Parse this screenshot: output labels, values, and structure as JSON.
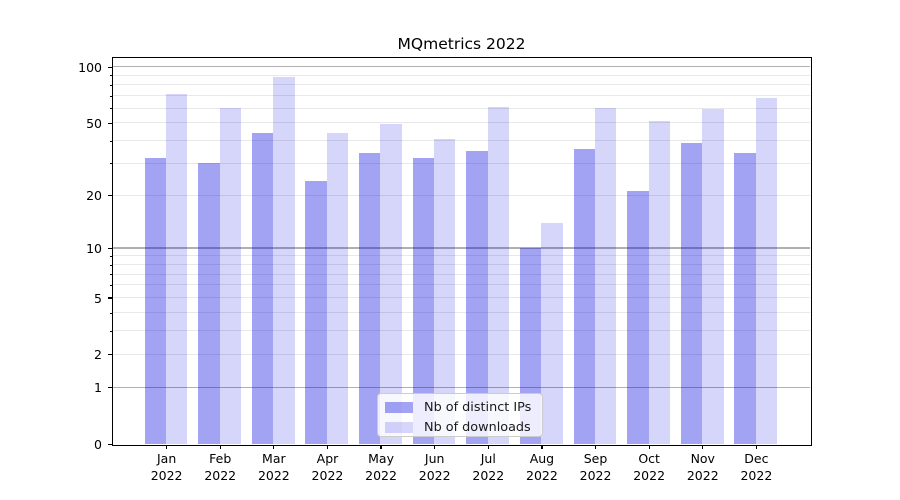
{
  "title": "MQmetrics 2022",
  "chart_data": {
    "type": "bar",
    "title": "MQmetrics 2022",
    "categories": [
      "Jan 2022",
      "Feb 2022",
      "Mar 2022",
      "Apr 2022",
      "May 2022",
      "Jun 2022",
      "Jul 2022",
      "Aug 2022",
      "Sep 2022",
      "Oct 2022",
      "Nov 2022",
      "Dec 2022"
    ],
    "series": [
      {
        "name": "Nb of distinct IPs",
        "values": [
          32,
          30,
          44,
          24,
          34,
          32,
          35,
          10,
          36,
          21,
          39,
          34
        ],
        "color": "rgba(0,0,224,0.36)",
        "color_hex": "#a3a3f4"
      },
      {
        "name": "Nb of downloads",
        "values": [
          71,
          60,
          88,
          44,
          49,
          41,
          61,
          14,
          60,
          51,
          59,
          68
        ],
        "color": "rgba(0,0,224,0.16)",
        "color_hex": "#d9d9fa"
      }
    ],
    "xlabel": "",
    "ylabel": "",
    "yscale": "log1p",
    "ylim": [
      0,
      112
    ],
    "ytick_labels": [
      "0",
      "1",
      "2",
      "5",
      "10",
      "20",
      "50",
      "100"
    ],
    "ytick_values": [
      0,
      1,
      2,
      5,
      10,
      20,
      50,
      100
    ],
    "ytick_minor_values": [
      3,
      4,
      6,
      7,
      8,
      9,
      30,
      40,
      60,
      70,
      80,
      90
    ],
    "grid": "on",
    "grid_major_values": [
      1,
      10,
      100
    ],
    "grid_minor_values": [
      2,
      3,
      4,
      5,
      6,
      7,
      8,
      9,
      20,
      30,
      40,
      50,
      60,
      70,
      80,
      90
    ],
    "legend_position": "lower center"
  },
  "colors": {
    "bar_distinct_ips": "#a3a3f4",
    "bar_downloads": "#d9d9fa",
    "grid_major": "#b0b0b0",
    "grid_minor": "#e8e8e8",
    "spine": "#000000",
    "text": "#000000",
    "legend_border": "#cccccc"
  }
}
